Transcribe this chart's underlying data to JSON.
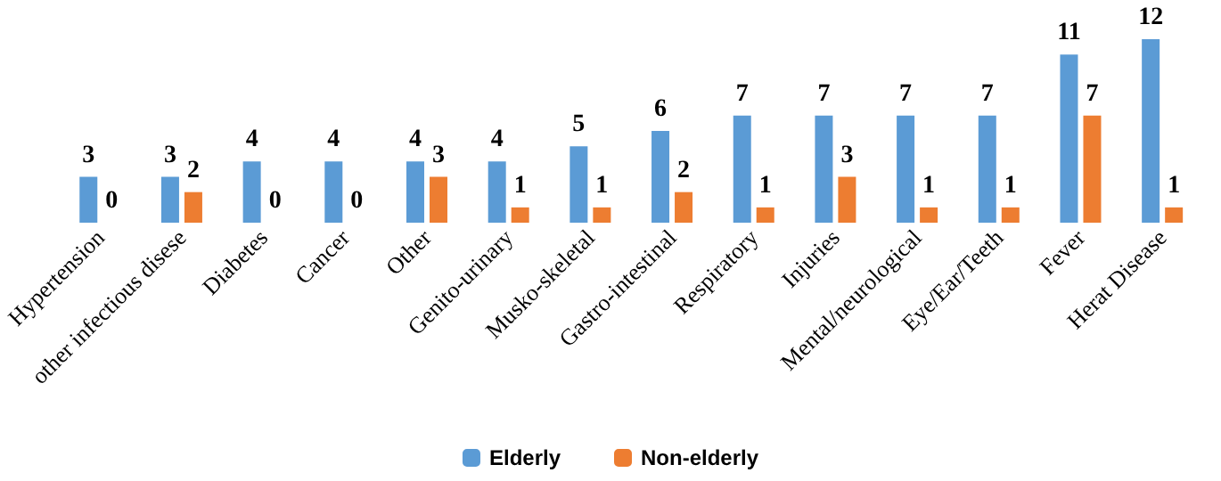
{
  "chart_data": {
    "type": "bar",
    "categories": [
      "Hypertension",
      "other infectious disese",
      "Diabetes",
      "Cancer",
      "Other",
      "Genito-urinary",
      "Musko-skeletal",
      "Gastro-intestinal",
      "Respiratory",
      "Injuries",
      "Mental/neurological",
      "Eye/Ear/Teeth",
      "Fever",
      "Herat Disease"
    ],
    "series": [
      {
        "name": "Elderly",
        "color": "#5b9bd5",
        "values": [
          3,
          3,
          4,
          4,
          4,
          4,
          5,
          6,
          7,
          7,
          7,
          7,
          11,
          12
        ]
      },
      {
        "name": "Non-elderly",
        "color": "#ed7d31",
        "values": [
          0,
          2,
          0,
          0,
          3,
          1,
          1,
          2,
          1,
          3,
          1,
          1,
          7,
          1
        ]
      }
    ],
    "data_labels": true,
    "legend": "bottom",
    "tick_labels": "x"
  }
}
